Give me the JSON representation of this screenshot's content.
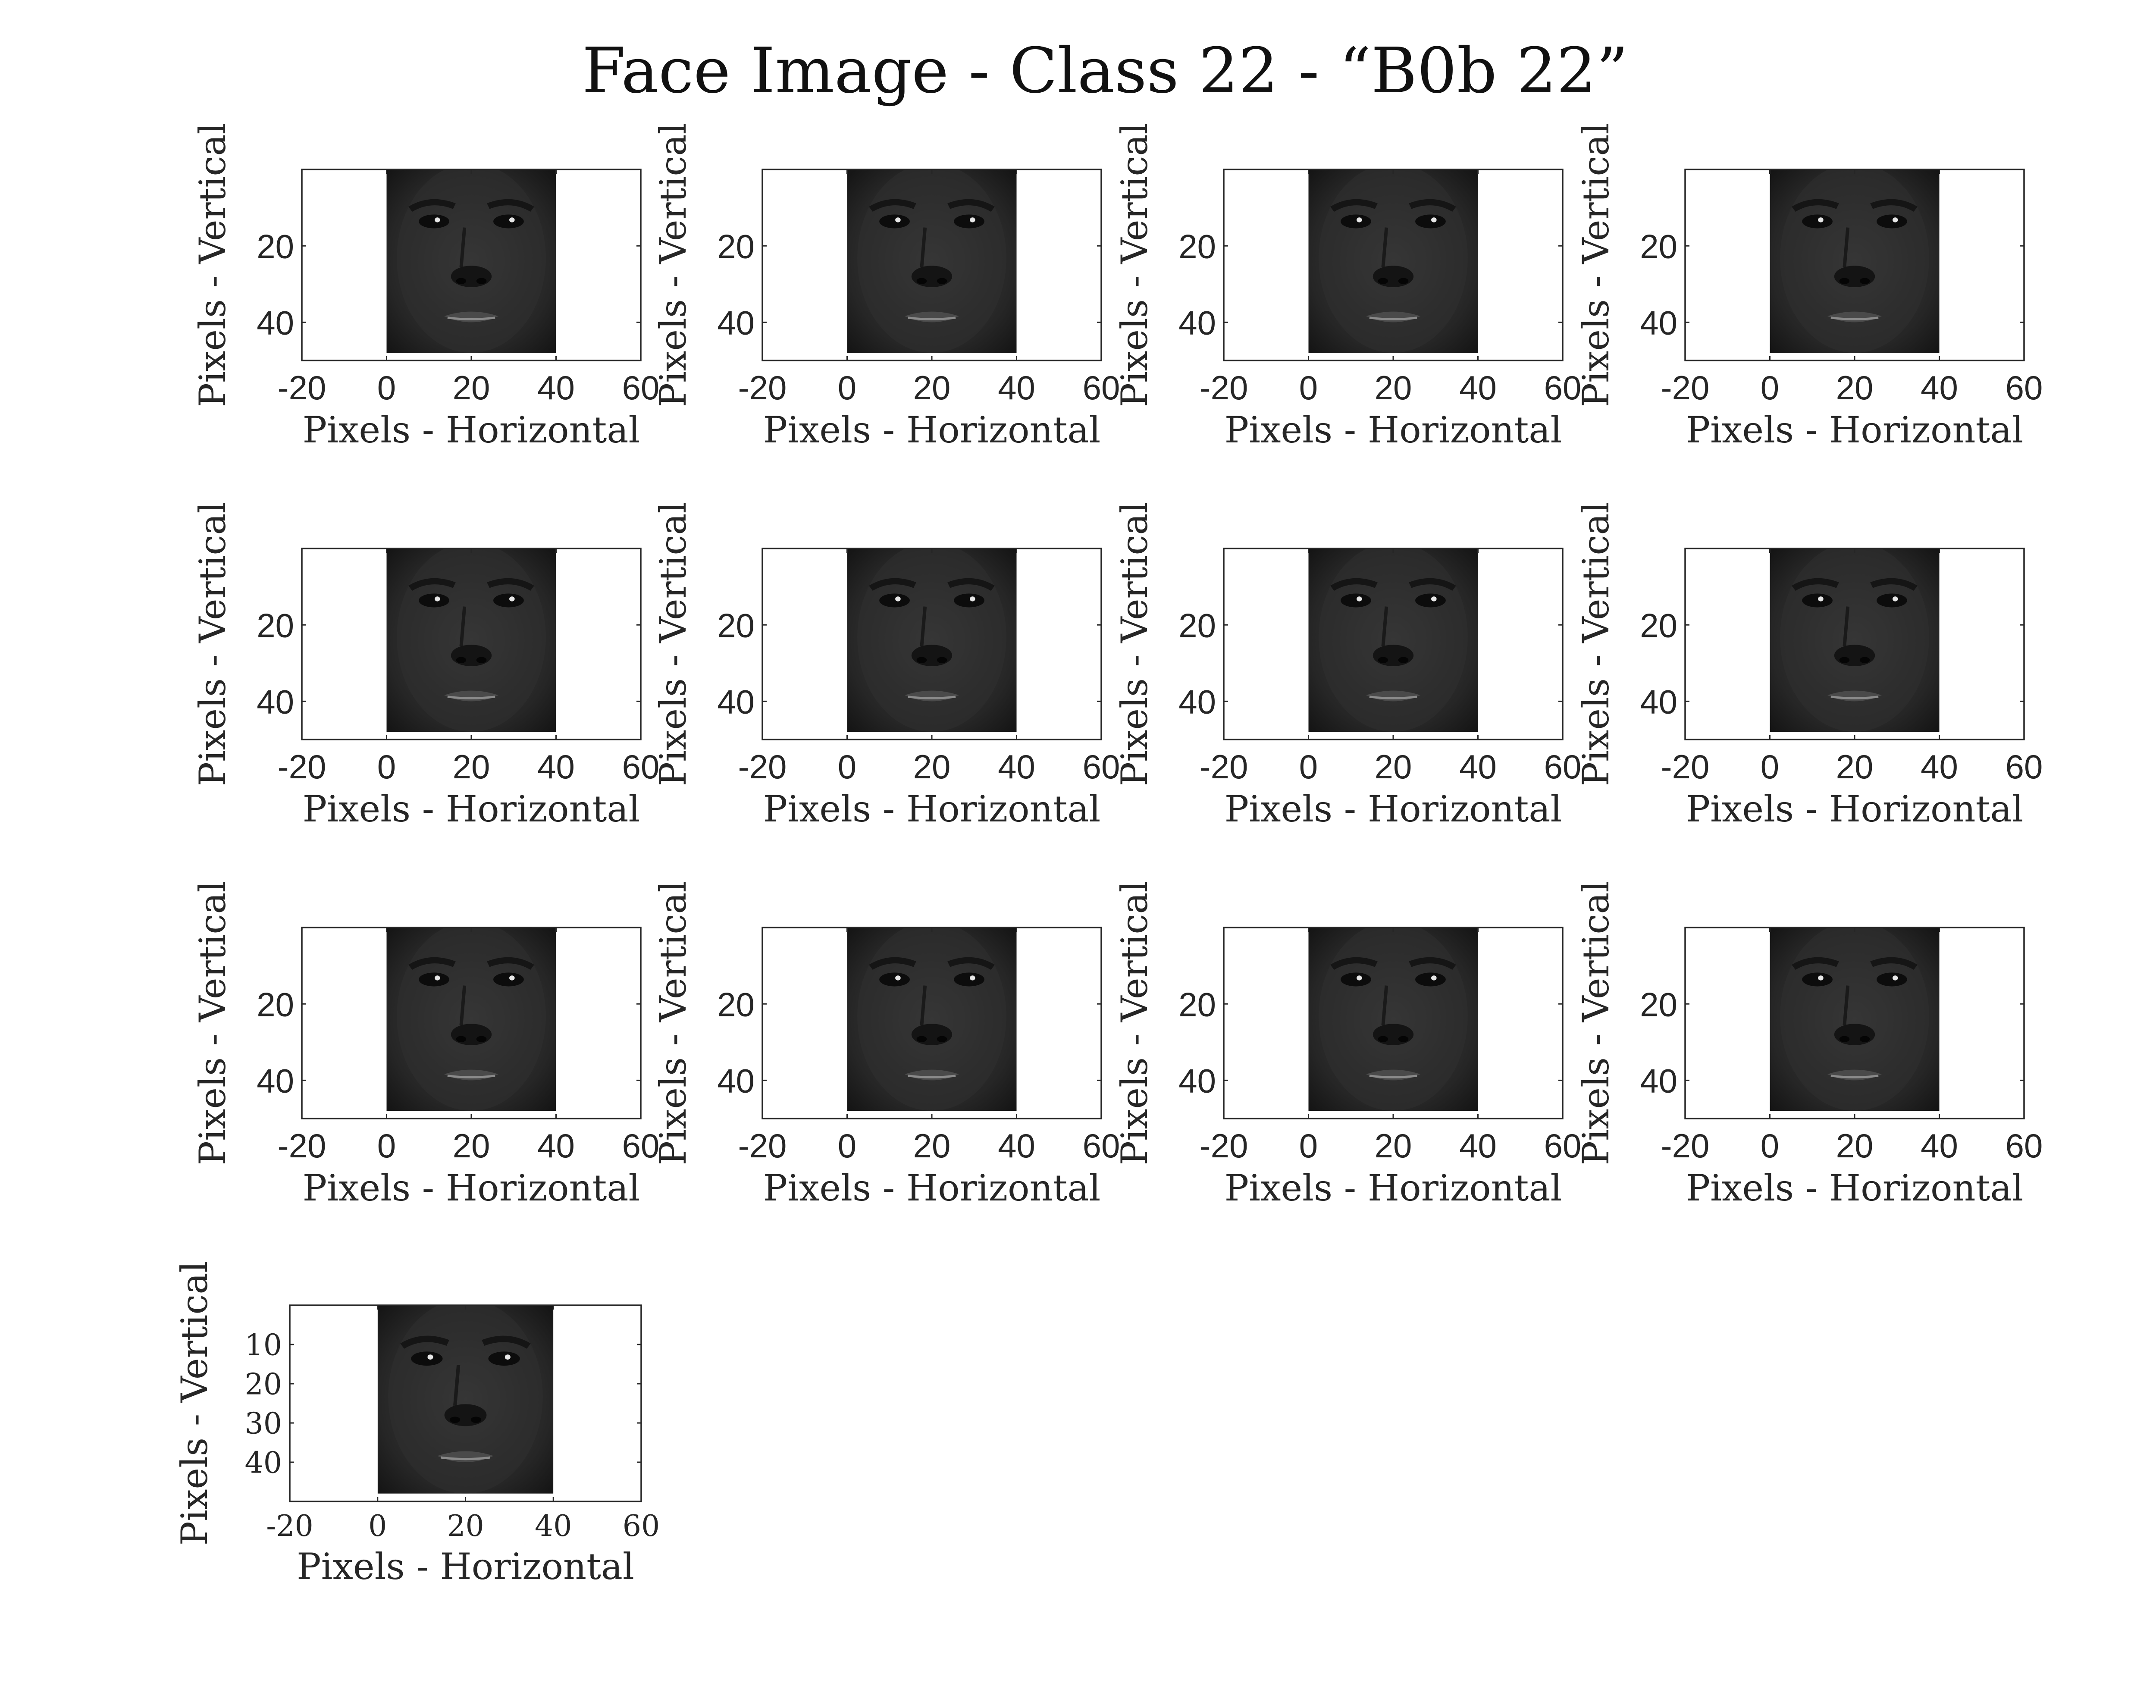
{
  "figure": {
    "title": "Face Image - Class 22 - “B0b 22”",
    "panel_count": 13,
    "columns": 4,
    "xlabel": "Pixels - Horizontal",
    "ylabel": "Pixels - Vertical",
    "xticks": [
      "-20",
      "0",
      "20",
      "40",
      "60"
    ],
    "yticks": [
      "20",
      "40"
    ],
    "last_panel_yticks": [
      "10",
      "20",
      "30",
      "40"
    ]
  },
  "chart_data": {
    "type": "image-grid",
    "title": "Face Image - Class 22 - “B0b 22”",
    "xlabel": "Pixels - Horizontal",
    "ylabel": "Pixels - Vertical",
    "xlim": [
      -20,
      60
    ],
    "ylim": [
      50,
      0
    ],
    "x_ticks": [
      -20,
      0,
      20,
      40,
      60
    ],
    "y_ticks": [
      20,
      40
    ],
    "image_extent": {
      "x": [
        0,
        40
      ],
      "y": [
        0,
        48
      ]
    },
    "colormap": "gray",
    "panels": [
      {
        "index": 1
      },
      {
        "index": 2
      },
      {
        "index": 3
      },
      {
        "index": 4
      },
      {
        "index": 5
      },
      {
        "index": 6
      },
      {
        "index": 7
      },
      {
        "index": 8
      },
      {
        "index": 9
      },
      {
        "index": 10
      },
      {
        "index": 11
      },
      {
        "index": 12
      },
      {
        "index": 13,
        "y_ticks": [
          10,
          20,
          30,
          40
        ]
      }
    ]
  }
}
